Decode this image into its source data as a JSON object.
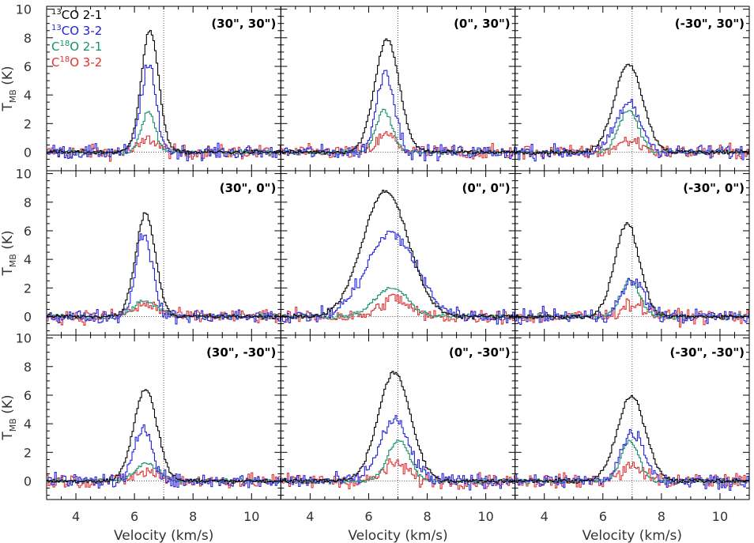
{
  "chart_data": {
    "type": "line",
    "step": true,
    "grid": false,
    "legend_placement": "top-left of first panel",
    "xlabel": "Velocity (km/s)",
    "ylabel": {
      "main": "T",
      "sub": "MB",
      "unit": " (K)"
    },
    "xlim": [
      3,
      11
    ],
    "ylim": [
      -1.3,
      10.2
    ],
    "xticks": [
      4,
      6,
      8,
      10
    ],
    "yticks": [
      0,
      2,
      4,
      6,
      8,
      10
    ],
    "reference_line": {
      "x": 7.0,
      "y": 0
    },
    "series_meta": [
      {
        "key": "13co21",
        "iso": "13",
        "pre": "",
        "post": "CO 2-1",
        "color": "#000000"
      },
      {
        "key": "13co32",
        "iso": "13",
        "pre": "",
        "post": "CO 3-2",
        "color": "#2222dd"
      },
      {
        "key": "c18o21",
        "iso": "18",
        "pre": "C",
        "post": "O 2-1",
        "color": "#1a9070"
      },
      {
        "key": "c18o32",
        "iso": "18",
        "pre": "C",
        "post": "O 3-2",
        "color": "#e03030"
      }
    ],
    "panels": [
      {
        "label": "(30\", 30\")",
        "row": 0,
        "col": 0,
        "series": [
          {
            "key": "13co21",
            "peak": 8.5,
            "center": 6.5,
            "width": 0.3
          },
          {
            "key": "13co32",
            "peak": 6.0,
            "center": 6.45,
            "width": 0.26
          },
          {
            "key": "c18o21",
            "peak": 2.8,
            "center": 6.45,
            "width": 0.24
          },
          {
            "key": "c18o32",
            "peak": 0.9,
            "center": 6.5,
            "width": 0.3
          }
        ]
      },
      {
        "label": "(0\", 30\")",
        "row": 0,
        "col": 1,
        "series": [
          {
            "key": "13co21",
            "peak": 7.9,
            "center": 6.6,
            "width": 0.42
          },
          {
            "key": "13co32",
            "peak": 5.7,
            "center": 6.55,
            "width": 0.3
          },
          {
            "key": "c18o21",
            "peak": 2.9,
            "center": 6.5,
            "width": 0.28
          },
          {
            "key": "c18o32",
            "peak": 1.2,
            "center": 6.6,
            "width": 0.32
          }
        ]
      },
      {
        "label": "(-30\", 30\")",
        "row": 0,
        "col": 2,
        "series": [
          {
            "key": "13co21",
            "peak": 6.2,
            "center": 6.85,
            "width": 0.48
          },
          {
            "key": "13co32",
            "peak": 3.4,
            "center": 6.85,
            "width": 0.42
          },
          {
            "key": "c18o21",
            "peak": 2.9,
            "center": 6.85,
            "width": 0.34
          },
          {
            "key": "c18o32",
            "peak": 0.8,
            "center": 6.9,
            "width": 0.4
          }
        ]
      },
      {
        "label": "(30\", 0\")",
        "row": 1,
        "col": 0,
        "series": [
          {
            "key": "13co21",
            "peak": 7.2,
            "center": 6.35,
            "width": 0.34
          },
          {
            "key": "13co32",
            "peak": 5.9,
            "center": 6.3,
            "width": 0.28
          },
          {
            "key": "c18o21",
            "peak": 1.1,
            "center": 6.35,
            "width": 0.4
          },
          {
            "key": "c18o32",
            "peak": 0.8,
            "center": 6.4,
            "width": 0.45
          }
        ]
      },
      {
        "label": "(0\", 0\")",
        "row": 1,
        "col": 1,
        "series": [
          {
            "key": "13co21",
            "peak": 8.8,
            "center": 6.55,
            "width": 0.78
          },
          {
            "key": "13co32",
            "peak": 5.8,
            "center": 6.75,
            "width": 0.85
          },
          {
            "key": "c18o21",
            "peak": 2.0,
            "center": 6.75,
            "width": 0.55
          },
          {
            "key": "c18o32",
            "peak": 1.3,
            "center": 6.85,
            "width": 0.45
          }
        ]
      },
      {
        "label": "(-30\", 0\")",
        "row": 1,
        "col": 2,
        "series": [
          {
            "key": "13co21",
            "peak": 6.5,
            "center": 6.8,
            "width": 0.42
          },
          {
            "key": "13co32",
            "peak": 2.5,
            "center": 7.0,
            "width": 0.38
          },
          {
            "key": "c18o21",
            "peak": 2.5,
            "center": 6.9,
            "width": 0.32
          },
          {
            "key": "c18o32",
            "peak": 0.9,
            "center": 7.0,
            "width": 0.4
          }
        ]
      },
      {
        "label": "(30\", -30\")",
        "row": 2,
        "col": 0,
        "series": [
          {
            "key": "13co21",
            "peak": 6.4,
            "center": 6.35,
            "width": 0.4
          },
          {
            "key": "13co32",
            "peak": 3.8,
            "center": 6.3,
            "width": 0.3
          },
          {
            "key": "c18o21",
            "peak": 1.2,
            "center": 6.4,
            "width": 0.4
          },
          {
            "key": "c18o32",
            "peak": 0.6,
            "center": 6.4,
            "width": 0.45
          }
        ]
      },
      {
        "label": "(0\", -30\")",
        "row": 2,
        "col": 1,
        "series": [
          {
            "key": "13co21",
            "peak": 7.6,
            "center": 6.85,
            "width": 0.55
          },
          {
            "key": "13co32",
            "peak": 4.2,
            "center": 6.85,
            "width": 0.5
          },
          {
            "key": "c18o21",
            "peak": 2.9,
            "center": 7.0,
            "width": 0.36
          },
          {
            "key": "c18o32",
            "peak": 1.2,
            "center": 6.9,
            "width": 0.4
          }
        ]
      },
      {
        "label": "(-30\", -30\")",
        "row": 2,
        "col": 2,
        "series": [
          {
            "key": "13co21",
            "peak": 5.9,
            "center": 6.95,
            "width": 0.48
          },
          {
            "key": "13co32",
            "peak": 3.4,
            "center": 7.0,
            "width": 0.4
          },
          {
            "key": "c18o21",
            "peak": 2.8,
            "center": 6.9,
            "width": 0.3
          },
          {
            "key": "c18o32",
            "peak": 1.0,
            "center": 7.0,
            "width": 0.4
          }
        ]
      }
    ]
  }
}
